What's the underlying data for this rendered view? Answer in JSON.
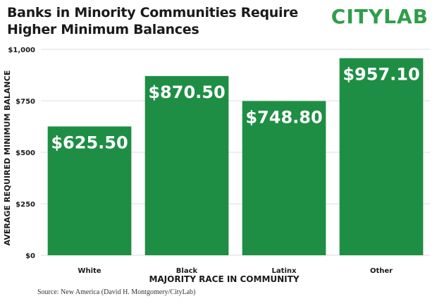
{
  "header": {
    "title": "Banks in Minority Communities Require Higher Minimum Balances",
    "logo": "CITYLAB"
  },
  "footer": {
    "source": "Source: New America (David H. Montgomery/CityLab)"
  },
  "colors": {
    "bar": "#1e8e44",
    "logo": "#2f9e4a",
    "grid": "#dddddd",
    "text": "#1a1a1a"
  },
  "chart_data": {
    "type": "bar",
    "title": "Banks in Minority Communities Require Higher Minimum Balances",
    "xlabel": "MAJORITY RACE IN COMMUNITY",
    "ylabel": "AVERAGE REQUIRED MINIMUM BALANCE",
    "categories": [
      "White",
      "Black",
      "Latinx",
      "Other"
    ],
    "values": [
      625.5,
      870.5,
      748.8,
      957.1
    ],
    "data_labels": [
      "$625.50",
      "$870.50",
      "$748.80",
      "$957.10"
    ],
    "ylim": [
      0,
      1000
    ],
    "yticks": [
      0,
      250,
      500,
      750,
      1000
    ],
    "ytick_labels": [
      "$0",
      "$250",
      "$500",
      "$750",
      "$1,000"
    ],
    "grid": true,
    "legend": "none"
  }
}
